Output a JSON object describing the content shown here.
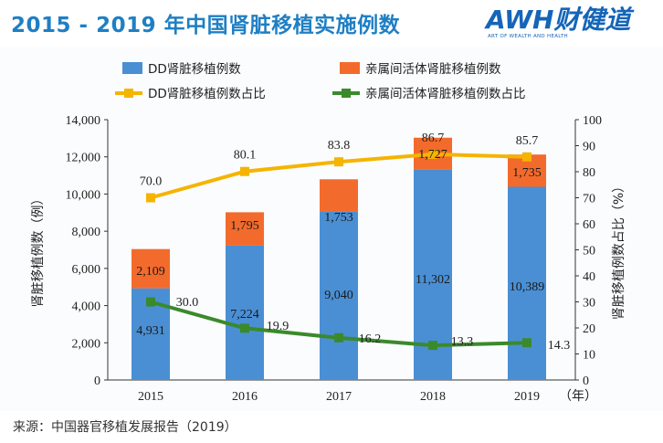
{
  "header": {
    "title": "2015 - 2019 年中国肾脏移植实施例数",
    "logo_main": "AWH财健道",
    "logo_sub": "ART OF WEALTH AND HEALTH"
  },
  "footer": {
    "source": "来源：中国器官移植发展报告（2019）"
  },
  "colors": {
    "dd_bar": "#4a8fd4",
    "ld_bar": "#f36b2c",
    "dd_line": "#f5b400",
    "ld_line": "#3a8a2c",
    "title": "#1f7fc4"
  },
  "chart_data": {
    "type": "bar",
    "stacked": true,
    "categories": [
      "2015",
      "2016",
      "2017",
      "2018",
      "2019"
    ],
    "x_unit_label": "（年）",
    "series": [
      {
        "name": "DD肾脏移植例数",
        "type": "bar",
        "values": [
          4931,
          7224,
          9040,
          11302,
          10389
        ],
        "labels": [
          "4,931",
          "7,224",
          "9,040",
          "11,302",
          "10,389"
        ]
      },
      {
        "name": "亲属间活体肾脏移植例数",
        "type": "bar",
        "values": [
          2109,
          1795,
          1753,
          1727,
          1735
        ],
        "labels": [
          "2,109",
          "1,795",
          "1,753",
          "1,727",
          "1,735"
        ]
      },
      {
        "name": "DD肾脏移植例数占比",
        "type": "line",
        "axis": "right",
        "values": [
          70.0,
          80.1,
          83.8,
          86.7,
          85.7
        ],
        "labels": [
          "70.0",
          "80.1",
          "83.8",
          "86.7",
          "85.7"
        ]
      },
      {
        "name": "亲属间活体肾脏移植例数占比",
        "type": "line",
        "axis": "right",
        "values": [
          30.0,
          19.9,
          16.2,
          13.3,
          14.3
        ],
        "labels": [
          "30.0",
          "19.9",
          "16.2",
          "13.3",
          "14.3"
        ]
      }
    ],
    "ylabel_left": "肾脏移植例数（例）",
    "ylabel_right": "肾脏移植例数占比（%）",
    "ylim_left": [
      0,
      14000
    ],
    "ylim_right": [
      0,
      100
    ],
    "yticks_left": [
      "0",
      "2,000",
      "4,000",
      "6,000",
      "8,000",
      "10,000",
      "12,000",
      "14,000"
    ],
    "yticks_right": [
      "0",
      "10",
      "20",
      "30",
      "40",
      "50",
      "60",
      "70",
      "80",
      "90",
      "100"
    ],
    "legend_position": "top"
  }
}
